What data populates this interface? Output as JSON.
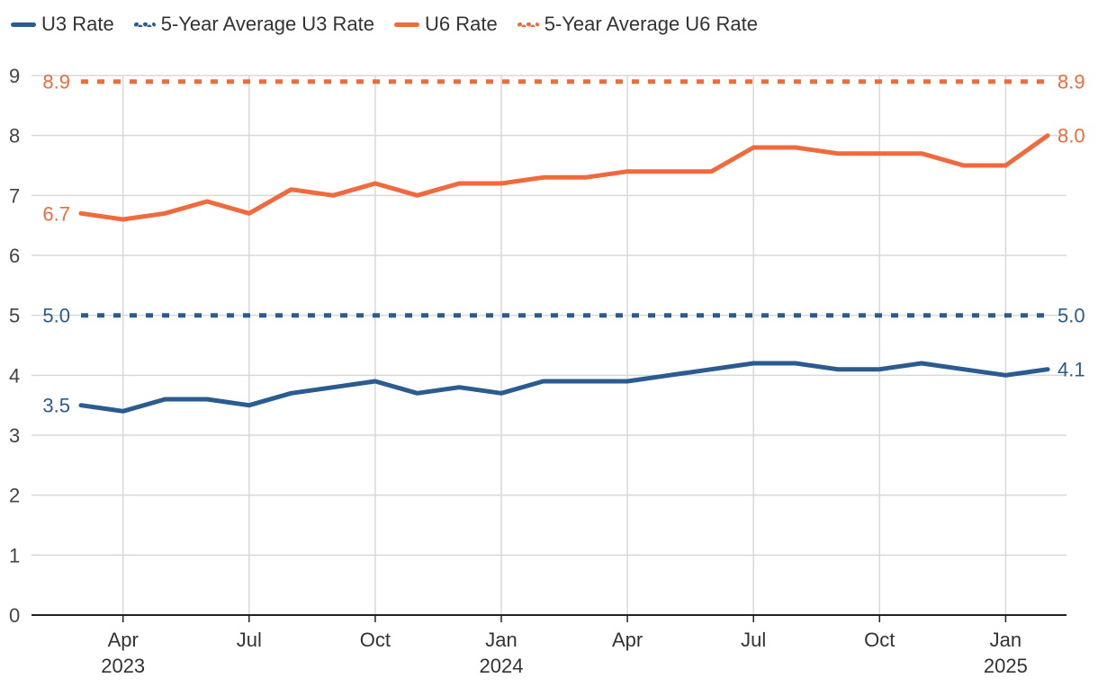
{
  "chart_data": {
    "type": "line",
    "title": "",
    "xlabel": "",
    "ylabel": "",
    "ylim": [
      0,
      9
    ],
    "yticks": [
      "0",
      "1",
      "2",
      "3",
      "4",
      "5",
      "6",
      "7",
      "8",
      "9"
    ],
    "x": [
      "2023-03",
      "2023-04",
      "2023-05",
      "2023-06",
      "2023-07",
      "2023-08",
      "2023-09",
      "2023-10",
      "2023-11",
      "2023-12",
      "2024-01",
      "2024-02",
      "2024-03",
      "2024-04",
      "2024-05",
      "2024-06",
      "2024-07",
      "2024-08",
      "2024-09",
      "2024-10",
      "2024-11",
      "2024-12",
      "2025-01",
      "2025-02"
    ],
    "xticks": [
      {
        "index": 1,
        "label": "Apr",
        "year": "2023"
      },
      {
        "index": 4,
        "label": "Jul",
        "year": ""
      },
      {
        "index": 7,
        "label": "Oct",
        "year": ""
      },
      {
        "index": 10,
        "label": "Jan",
        "year": "2024"
      },
      {
        "index": 13,
        "label": "Apr",
        "year": ""
      },
      {
        "index": 16,
        "label": "Jul",
        "year": ""
      },
      {
        "index": 19,
        "label": "Oct",
        "year": ""
      },
      {
        "index": 22,
        "label": "Jan",
        "year": "2025"
      }
    ],
    "grid": true,
    "legend_position": "top-left",
    "series": [
      {
        "name": "U3 Rate",
        "color": "#2b5c8f",
        "style": "solid",
        "values": [
          3.5,
          3.4,
          3.6,
          3.6,
          3.5,
          3.7,
          3.8,
          3.9,
          3.7,
          3.8,
          3.7,
          3.9,
          3.9,
          3.9,
          4.0,
          4.1,
          4.2,
          4.2,
          4.1,
          4.1,
          4.2,
          4.1,
          4.0,
          4.1
        ],
        "start_label": "3.5",
        "end_label": "4.1"
      },
      {
        "name": "5-Year Average U3 Rate",
        "color": "#2b5c8f",
        "style": "dashed",
        "values": [
          5.0,
          5.0,
          5.0,
          5.0,
          5.0,
          5.0,
          5.0,
          5.0,
          5.0,
          5.0,
          5.0,
          5.0,
          5.0,
          5.0,
          5.0,
          5.0,
          5.0,
          5.0,
          5.0,
          5.0,
          5.0,
          5.0,
          5.0,
          5.0
        ],
        "start_label": "5.0",
        "end_label": "5.0"
      },
      {
        "name": "U6 Rate",
        "color": "#ef6a3c",
        "style": "solid",
        "values": [
          6.7,
          6.6,
          6.7,
          6.9,
          6.7,
          7.1,
          7.0,
          7.2,
          7.0,
          7.2,
          7.2,
          7.3,
          7.3,
          7.4,
          7.4,
          7.4,
          7.8,
          7.8,
          7.7,
          7.7,
          7.7,
          7.5,
          7.5,
          8.0
        ],
        "start_label": "6.7",
        "end_label": "8.0"
      },
      {
        "name": "5-Year Average U6 Rate",
        "color": "#ef6a3c",
        "style": "dashed",
        "values": [
          8.9,
          8.9,
          8.9,
          8.9,
          8.9,
          8.9,
          8.9,
          8.9,
          8.9,
          8.9,
          8.9,
          8.9,
          8.9,
          8.9,
          8.9,
          8.9,
          8.9,
          8.9,
          8.9,
          8.9,
          8.9,
          8.9,
          8.9,
          8.9
        ],
        "start_label": "8.9",
        "end_label": "8.9"
      }
    ]
  }
}
